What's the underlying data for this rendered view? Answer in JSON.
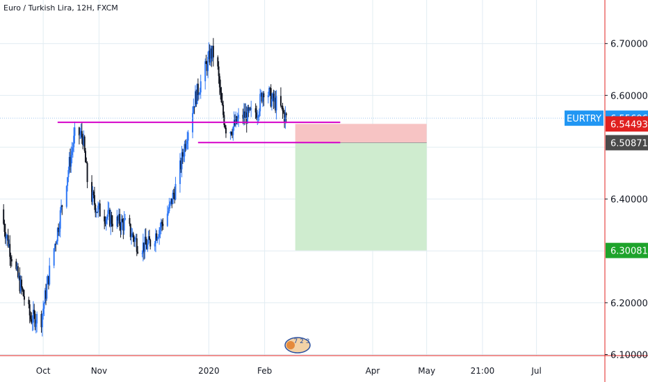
{
  "header": {
    "title": "Euro / Turkish Lira, 12H, FXCM"
  },
  "watermark": {
    "text": "7 2 3"
  },
  "colors": {
    "up": "#3179f5",
    "down": "#131722",
    "level": "#d500c9",
    "stop_fill": "#f7c4c4",
    "target_fill": "#cfeccf",
    "grid": "#e1ecf2",
    "symbol_tag": "#2196f3",
    "last_price_tag": "#e0201f",
    "entry_tag": "#4a4a4a",
    "target_tag": "#1ea32b"
  },
  "chart_data": {
    "type": "candlestick",
    "symbol": "EURTRY",
    "interval": "12H",
    "y_ticks": [
      "6.70000",
      "6.60000",
      "6.40000",
      "6.20000",
      "6.10000"
    ],
    "y_tick_values": [
      6.7,
      6.6,
      6.4,
      6.2,
      6.1
    ],
    "ylim": [
      6.098,
      6.784
    ],
    "x_ticks": [
      "Oct",
      "Nov",
      "2020",
      "Feb",
      "Apr",
      "May",
      "21:00",
      "Jul"
    ],
    "x_tick_dates": [
      "2019-10-01",
      "2019-11-01",
      "2020-01-01",
      "2020-02-01",
      "2020-04-01",
      "2020-05-01",
      "2020-06-01",
      "2020-07-01"
    ],
    "xlim": [
      "2019-09-07",
      "2020-08-08"
    ],
    "price_tags": [
      {
        "label": "EURTRY",
        "value": "6.55606",
        "price": 6.55606,
        "kind": "symbol"
      },
      {
        "label": "",
        "value": "6.54493",
        "price": 6.54493,
        "kind": "last"
      },
      {
        "label": "",
        "value": "6.50871",
        "price": 6.50871,
        "kind": "entry"
      },
      {
        "label": "",
        "value": "6.30081",
        "price": 6.30081,
        "kind": "target"
      }
    ],
    "horizontal_levels": [
      {
        "price": 6.548,
        "from": "2019-10-09",
        "to": "2020-03-14"
      },
      {
        "price": 6.509,
        "from": "2019-12-26",
        "to": "2020-03-14"
      }
    ],
    "position": {
      "side": "short",
      "from": "2020-02-18",
      "to": "2020-05-01",
      "stop": 6.545,
      "entry": 6.50871,
      "target": 6.30081
    },
    "anchors": [
      {
        "date": "2019-09-07",
        "price": 6.38
      },
      {
        "date": "2019-09-15",
        "price": 6.27
      },
      {
        "date": "2019-09-24",
        "price": 6.17
      },
      {
        "date": "2019-09-30",
        "price": 6.17
      },
      {
        "date": "2019-10-05",
        "price": 6.27
      },
      {
        "date": "2019-10-09",
        "price": 6.34
      },
      {
        "date": "2019-10-14",
        "price": 6.44
      },
      {
        "date": "2019-10-19",
        "price": 6.53
      },
      {
        "date": "2019-10-23",
        "price": 6.52
      },
      {
        "date": "2019-10-26",
        "price": 6.42
      },
      {
        "date": "2019-10-31",
        "price": 6.38
      },
      {
        "date": "2019-11-08",
        "price": 6.36
      },
      {
        "date": "2019-11-16",
        "price": 6.35
      },
      {
        "date": "2019-11-23",
        "price": 6.31
      },
      {
        "date": "2019-11-28",
        "price": 6.31
      },
      {
        "date": "2019-12-04",
        "price": 6.34
      },
      {
        "date": "2019-12-10",
        "price": 6.38
      },
      {
        "date": "2019-12-15",
        "price": 6.44
      },
      {
        "date": "2019-12-20",
        "price": 6.53
      },
      {
        "date": "2019-12-24",
        "price": 6.59
      },
      {
        "date": "2019-12-28",
        "price": 6.63
      },
      {
        "date": "2020-01-02",
        "price": 6.68
      },
      {
        "date": "2020-01-05",
        "price": 6.68
      },
      {
        "date": "2020-01-08",
        "price": 6.58
      },
      {
        "date": "2020-01-11",
        "price": 6.53
      },
      {
        "date": "2020-01-15",
        "price": 6.54
      },
      {
        "date": "2020-01-19",
        "price": 6.56
      },
      {
        "date": "2020-01-23",
        "price": 6.56
      },
      {
        "date": "2020-01-28",
        "price": 6.57
      },
      {
        "date": "2020-02-01",
        "price": 6.62
      },
      {
        "date": "2020-02-05",
        "price": 6.59
      },
      {
        "date": "2020-02-09",
        "price": 6.58
      },
      {
        "date": "2020-02-13",
        "price": 6.555
      }
    ]
  }
}
